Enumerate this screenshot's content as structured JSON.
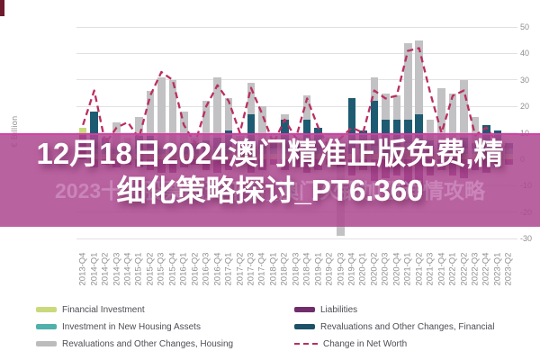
{
  "header": {
    "title_line1": "12月18日2024澳门精准正版免费,精",
    "title_line2": "细化策略探讨_PT6.360",
    "watermark": "2023十大股票配资平台_澳门火锅加盟详情攻略"
  },
  "chart_data": {
    "type": "bar",
    "subtype": "stacked-bars-with-dashed-line",
    "ylabel": "€ Billion",
    "ylim": [
      -30,
      50
    ],
    "y_axis_ticks": [
      50,
      40,
      30,
      20,
      10,
      0,
      -10,
      -20,
      -30
    ],
    "grid": "horizontal",
    "categories": [
      "2013-Q4",
      "2014-Q1",
      "2014-Q2",
      "2014-Q3",
      "2014-Q4",
      "2015-Q1",
      "2015-Q2",
      "2015-Q3",
      "2015-Q4",
      "2016-Q1",
      "2016-Q2",
      "2016-Q3",
      "2016-Q4",
      "2017-Q1",
      "2017-Q2",
      "2017-Q3",
      "2017-Q4",
      "2018-Q1",
      "2018-Q2",
      "2018-Q3",
      "2018-Q4",
      "2019-Q1",
      "2019-Q2",
      "2019-Q3",
      "2019-Q4",
      "2020-Q1",
      "2020-Q2",
      "2020-Q3",
      "2020-Q4",
      "2021-Q1",
      "2021-Q2",
      "2021-Q3",
      "2021-Q4",
      "2022-Q1",
      "2022-Q2",
      "2022-Q3",
      "2022-Q4",
      "2023-Q1",
      "2023-Q2"
    ],
    "series": [
      {
        "name": "Liabilities",
        "color": "#7c2f76",
        "values": [
          10,
          -3,
          -2,
          -3,
          -2,
          -3,
          -4,
          -5,
          -5,
          -3,
          -2,
          -4,
          -5,
          -4,
          -2,
          -5,
          -4,
          -2,
          -4,
          -3,
          -5,
          -4,
          -2,
          -3,
          -6,
          -4,
          -8,
          -7,
          -6,
          -12,
          -14,
          -6,
          -4,
          -6,
          -7,
          -4,
          -5,
          -3,
          -2
        ]
      },
      {
        "name": "Financial Investment",
        "color": "#c9da7d",
        "values": [
          2,
          2,
          2,
          2,
          2,
          2,
          2,
          2,
          2,
          2,
          2,
          2,
          2,
          2,
          2,
          2,
          2,
          2,
          2,
          2,
          2,
          2,
          2,
          2,
          2,
          2,
          2,
          2,
          2,
          3,
          3,
          2,
          2,
          2,
          2,
          2,
          2,
          2,
          2
        ]
      },
      {
        "name": "Investment in New Housing Assets",
        "color": "#4fb0ac",
        "values": [
          0,
          2,
          2,
          2,
          2,
          2,
          2,
          2,
          2,
          2,
          2,
          2,
          2,
          2,
          2,
          2,
          2,
          2,
          2,
          2,
          2,
          2,
          2,
          2,
          0,
          2,
          3,
          3,
          3,
          3,
          3,
          2,
          2,
          2,
          2,
          2,
          2,
          2,
          2
        ]
      },
      {
        "name": "Revaluations and Other Changes, Financial",
        "color": "#1d5b72",
        "values": [
          0,
          14,
          4,
          0,
          0,
          5,
          5,
          0,
          0,
          2,
          2,
          3,
          4,
          7,
          2,
          13,
          3,
          2,
          11,
          2,
          11,
          8,
          2,
          2,
          21,
          7,
          17,
          10,
          10,
          9,
          11,
          3,
          2,
          3,
          4,
          2,
          9,
          7,
          2
        ]
      },
      {
        "name": "Revaluations and Other Changes, Housing",
        "color": "#c2c2c4",
        "values": [
          0,
          0,
          0,
          10,
          4,
          7,
          17,
          27,
          26,
          12,
          2,
          15,
          23,
          12,
          3,
          12,
          13,
          2,
          2,
          2,
          9,
          0,
          2,
          -26,
          0,
          0,
          9,
          10,
          9,
          29,
          28,
          8,
          21,
          18,
          22,
          10,
          0,
          0,
          0
        ]
      }
    ],
    "line_series": {
      "name": "Change in Net Worth",
      "color": "#bb2e60",
      "style": "dashed",
      "values": [
        13,
        26,
        6,
        12,
        14,
        8,
        24,
        33,
        30,
        13,
        6,
        20,
        28,
        22,
        10,
        27,
        17,
        6,
        15,
        8,
        23,
        12,
        4,
        8,
        12,
        10,
        26,
        23,
        24,
        41,
        42,
        25,
        10,
        24,
        26,
        9,
        12,
        6,
        4
      ]
    }
  },
  "legend": {
    "columns": [
      {
        "items": [
          {
            "label": "Financial Investment",
            "swatch": "#c9da7d",
            "type": "box"
          },
          {
            "label": "Investment in New Housing Assets",
            "swatch": "#4fb0ac",
            "type": "box"
          },
          {
            "label": "Revaluations and Other Changes, Housing",
            "swatch": "#bcbcbc",
            "type": "box"
          }
        ]
      },
      {
        "items": [
          {
            "label": "Liabilities",
            "swatch": "#6f2d6b",
            "type": "box"
          },
          {
            "label": "Revaluations and Other Changes, Financial",
            "swatch": "#1d5168",
            "type": "box"
          },
          {
            "label": "Change in Net Worth",
            "swatch": "#bb2e60",
            "type": "dash"
          }
        ]
      }
    ]
  },
  "overlay": {
    "band_color": "#ad4890",
    "title_color": "#ffffff",
    "watermark_color": "#cf8ec0"
  }
}
